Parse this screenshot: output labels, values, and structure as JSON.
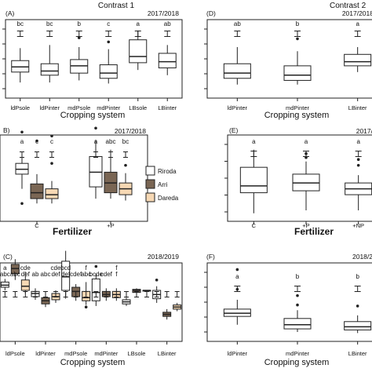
{
  "chart_data": [
    {
      "id": "A",
      "type": "box",
      "panel_label": "(A)",
      "title": "Contrast 1",
      "season": "2017/2018",
      "xlabel": "Cropping  system",
      "categories": [
        "ldPsole",
        "ldPinter",
        "mdPsole",
        "mdPinter",
        "LBsole",
        "LBinter"
      ],
      "letters": [
        "bc",
        "bc",
        "b",
        "c",
        "a",
        "ab"
      ],
      "groups": [
        {
          "category": "ldPsole",
          "min": 1.2,
          "q1": 2.2,
          "median": 2.7,
          "q3": 3.3,
          "max": 4.5,
          "outliers": []
        },
        {
          "category": "ldPinter",
          "min": 1.2,
          "q1": 1.9,
          "median": 2.3,
          "q3": 3.0,
          "max": 4.8,
          "outliers": []
        },
        {
          "category": "mdPsole",
          "min": 1.4,
          "q1": 2.1,
          "median": 2.8,
          "q3": 3.4,
          "max": 4.6,
          "outliers": [
            5.5
          ]
        },
        {
          "category": "mdPinter",
          "min": 1.1,
          "q1": 1.6,
          "median": 2.1,
          "q3": 2.9,
          "max": 4.4,
          "outliers": [
            5.1
          ]
        },
        {
          "category": "LBsole",
          "min": 2.4,
          "q1": 3.1,
          "median": 3.7,
          "q3": 5.3,
          "max": 6.2,
          "outliers": []
        },
        {
          "category": "LBinter",
          "min": 1.9,
          "q1": 2.6,
          "median": 3.2,
          "q3": 4.0,
          "max": 4.8,
          "outliers": []
        }
      ],
      "ylim": [
        0,
        10
      ]
    },
    {
      "id": "B",
      "type": "box",
      "panel_label": "B)",
      "season": "2017/2018",
      "xlabel": "Fertilizer",
      "categories": [
        "C",
        "+P"
      ],
      "legend": [
        "Riroda",
        "Arri",
        "Dareda"
      ],
      "legend_colors": [
        "#ffffff",
        "#7a6654",
        "#f6d8b4"
      ],
      "legend_position": "right",
      "letters": [
        [
          "a",
          "c",
          "c"
        ],
        [
          "a",
          "abc",
          "bc"
        ]
      ],
      "groups": [
        {
          "category": "C",
          "series": "Riroda",
          "min": 3.0,
          "q1": 4.5,
          "median": 5.0,
          "q3": 5.6,
          "max": 6.5,
          "outliers": [
            1.5,
            8.8
          ]
        },
        {
          "category": "C",
          "series": "Arri",
          "min": 1.5,
          "q1": 2.0,
          "median": 2.6,
          "q3": 3.5,
          "max": 4.5,
          "outliers": [
            7.9
          ]
        },
        {
          "category": "C",
          "series": "Dareda",
          "min": 1.5,
          "q1": 2.0,
          "median": 2.4,
          "q3": 3.0,
          "max": 3.8,
          "outliers": [
            5.6,
            8.4
          ]
        },
        {
          "category": "+P",
          "series": "Riroda",
          "min": 2.0,
          "q1": 3.2,
          "median": 4.7,
          "q3": 6.3,
          "max": 8.0,
          "outliers": [
            9.2
          ]
        },
        {
          "category": "+P",
          "series": "Arri",
          "min": 2.0,
          "q1": 2.6,
          "median": 3.6,
          "q3": 4.7,
          "max": 7.0,
          "outliers": []
        },
        {
          "category": "+P",
          "series": "Dareda",
          "min": 1.8,
          "q1": 2.4,
          "median": 3.0,
          "q3": 3.6,
          "max": 4.6,
          "outliers": [
            5.4
          ]
        }
      ],
      "ylim": [
        0,
        12
      ]
    },
    {
      "id": "C",
      "type": "box",
      "panel_label": "(C)",
      "season": "2018/2019",
      "xlabel": "Cropping  system",
      "categories": [
        "ldPsole",
        "ldPinter",
        "mdPsole",
        "mdPinter",
        "LBsole",
        "LBinter"
      ],
      "letter_rows": [
        [
          "a",
          "",
          "cde",
          "",
          "",
          "cde",
          "bcd",
          "",
          "f",
          "",
          "",
          "f"
        ],
        [
          "abc",
          "abc",
          "def",
          "ab",
          "abc",
          "def",
          "def",
          "cdef",
          "abc",
          "bcde",
          "cdef",
          "f"
        ]
      ],
      "groups": [
        {
          "category": "ldPsole",
          "series": "Riroda",
          "min": 4.6,
          "q1": 4.9,
          "median": 5.1,
          "q3": 5.4,
          "max": 5.7,
          "outliers": []
        },
        {
          "category": "ldPsole",
          "series": "Arri",
          "min": 5.6,
          "q1": 6.2,
          "median": 6.7,
          "q3": 7.1,
          "max": 7.6,
          "outliers": []
        },
        {
          "category": "ldPsole",
          "series": "Dareda",
          "min": 4.3,
          "q1": 4.6,
          "median": 5.0,
          "q3": 5.6,
          "max": 6.4,
          "outliers": []
        },
        {
          "category": "ldPinter",
          "series": "Riroda",
          "min": 3.7,
          "q1": 4.0,
          "median": 4.3,
          "q3": 4.5,
          "max": 4.8,
          "outliers": []
        },
        {
          "category": "ldPinter",
          "series": "Arri",
          "min": 3.0,
          "q1": 3.3,
          "median": 3.6,
          "q3": 3.9,
          "max": 4.2,
          "outliers": []
        },
        {
          "category": "ldPinter",
          "series": "Dareda",
          "min": 3.4,
          "q1": 3.7,
          "median": 4.0,
          "q3": 4.3,
          "max": 4.6,
          "outliers": []
        },
        {
          "category": "mdPsole",
          "series": "Riroda",
          "min": 3.8,
          "q1": 4.6,
          "median": 5.9,
          "q3": 7.4,
          "max": 8.4,
          "outliers": []
        },
        {
          "category": "mdPsole",
          "series": "Arri",
          "min": 3.6,
          "q1": 4.0,
          "median": 4.5,
          "q3": 4.9,
          "max": 5.2,
          "outliers": []
        },
        {
          "category": "mdPsole",
          "series": "Dareda",
          "min": 3.2,
          "q1": 3.6,
          "median": 3.9,
          "q3": 4.5,
          "max": 5.4,
          "outliers": [
            3.0
          ]
        },
        {
          "category": "mdPinter",
          "series": "Riroda",
          "min": 3.1,
          "q1": 3.6,
          "median": 4.4,
          "q3": 5.7,
          "max": 6.2,
          "outliers": [
            6.9
          ]
        },
        {
          "category": "mdPinter",
          "series": "Arri",
          "min": 3.6,
          "q1": 4.0,
          "median": 4.2,
          "q3": 4.5,
          "max": 4.8,
          "outliers": []
        },
        {
          "category": "mdPinter",
          "series": "Dareda",
          "min": 3.6,
          "q1": 3.9,
          "median": 4.2,
          "q3": 4.5,
          "max": 4.8,
          "outliers": []
        },
        {
          "category": "LBsole",
          "series": "Riroda",
          "min": 3.1,
          "q1": 3.3,
          "median": 3.5,
          "q3": 3.7,
          "max": 3.9,
          "outliers": []
        },
        {
          "category": "LBsole",
          "series": "Arri",
          "min": 4.3,
          "q1": 4.4,
          "median": 4.6,
          "q3": 4.7,
          "max": 4.8,
          "outliers": []
        },
        {
          "category": "LBsole",
          "series": "Dareda",
          "min": 4.6,
          "q1": 4.6,
          "median": 4.6,
          "q3": 4.6,
          "max": 4.6,
          "outliers": []
        },
        {
          "category": "LBinter",
          "series": "Riroda",
          "min": 3.4,
          "q1": 3.8,
          "median": 4.2,
          "q3": 4.6,
          "max": 5.0,
          "outliers": [
            5.6
          ]
        },
        {
          "category": "LBinter",
          "series": "Arri",
          "min": 1.8,
          "q1": 2.1,
          "median": 2.3,
          "q3": 2.5,
          "max": 2.8,
          "outliers": []
        },
        {
          "category": "LBinter",
          "series": "Dareda",
          "min": 2.6,
          "q1": 2.8,
          "median": 3.0,
          "q3": 3.2,
          "max": 3.4,
          "outliers": []
        }
      ],
      "ylim": [
        0,
        10
      ]
    },
    {
      "id": "D",
      "type": "box",
      "panel_label": "(D)",
      "title": "Contrast 2",
      "season": "2017/2018",
      "xlabel": "Cropping  system",
      "categories": [
        "ldPinter",
        "mdPinter",
        "LBinter"
      ],
      "letters": [
        "ab",
        "b",
        "a"
      ],
      "groups": [
        {
          "category": "ldPinter",
          "min": 1.0,
          "q1": 1.6,
          "median": 2.1,
          "q3": 3.0,
          "max": 4.6,
          "outliers": []
        },
        {
          "category": "mdPinter",
          "min": 1.0,
          "q1": 1.4,
          "median": 1.9,
          "q3": 2.8,
          "max": 4.2,
          "outliers": [
            5.4
          ]
        },
        {
          "category": "LBinter",
          "min": 2.2,
          "q1": 2.8,
          "median": 3.2,
          "q3": 3.9,
          "max": 4.6,
          "outliers": []
        }
      ],
      "ylim": [
        0,
        10
      ]
    },
    {
      "id": "E",
      "type": "box",
      "panel_label": "(E)",
      "season": "2017/",
      "xlabel": "Fertilizer",
      "categories": [
        "C",
        "+P",
        "+NP"
      ],
      "letters": [
        "a",
        "a",
        "a"
      ],
      "groups": [
        {
          "category": "C",
          "min": 0.5,
          "q1": 2.6,
          "median": 3.3,
          "q3": 5.2,
          "max": 7.0,
          "outliers": []
        },
        {
          "category": "+P",
          "min": 0.8,
          "q1": 2.8,
          "median": 3.6,
          "q3": 4.5,
          "max": 5.8,
          "outliers": [
            6.2,
            6.6
          ]
        },
        {
          "category": "+NP",
          "min": 0.8,
          "q1": 2.4,
          "median": 3.0,
          "q3": 3.6,
          "max": 4.4,
          "outliers": [
            5.4,
            6.0
          ]
        }
      ],
      "ylim": [
        0,
        12
      ]
    },
    {
      "id": "F",
      "type": "box",
      "panel_label": "(F)",
      "season": "2018/2",
      "xlabel": "Cropping  system",
      "categories": [
        "ldPinter",
        "mdPinter",
        "LBinter"
      ],
      "letters": [
        "a",
        "b",
        "b"
      ],
      "groups": [
        {
          "category": "ldPinter",
          "min": 1.3,
          "q1": 2.1,
          "median": 2.4,
          "q3": 2.8,
          "max": 3.7,
          "outliers": [
            4.7,
            6.6
          ]
        },
        {
          "category": "mdPinter",
          "min": 0.6,
          "q1": 0.9,
          "median": 1.3,
          "q3": 1.9,
          "max": 2.7,
          "outliers": [
            3.2,
            4.1
          ]
        },
        {
          "category": "LBinter",
          "min": 0.5,
          "q1": 0.8,
          "median": 1.1,
          "q3": 1.6,
          "max": 2.2,
          "outliers": [
            3.1
          ]
        }
      ],
      "ylim": [
        0,
        10
      ]
    }
  ]
}
